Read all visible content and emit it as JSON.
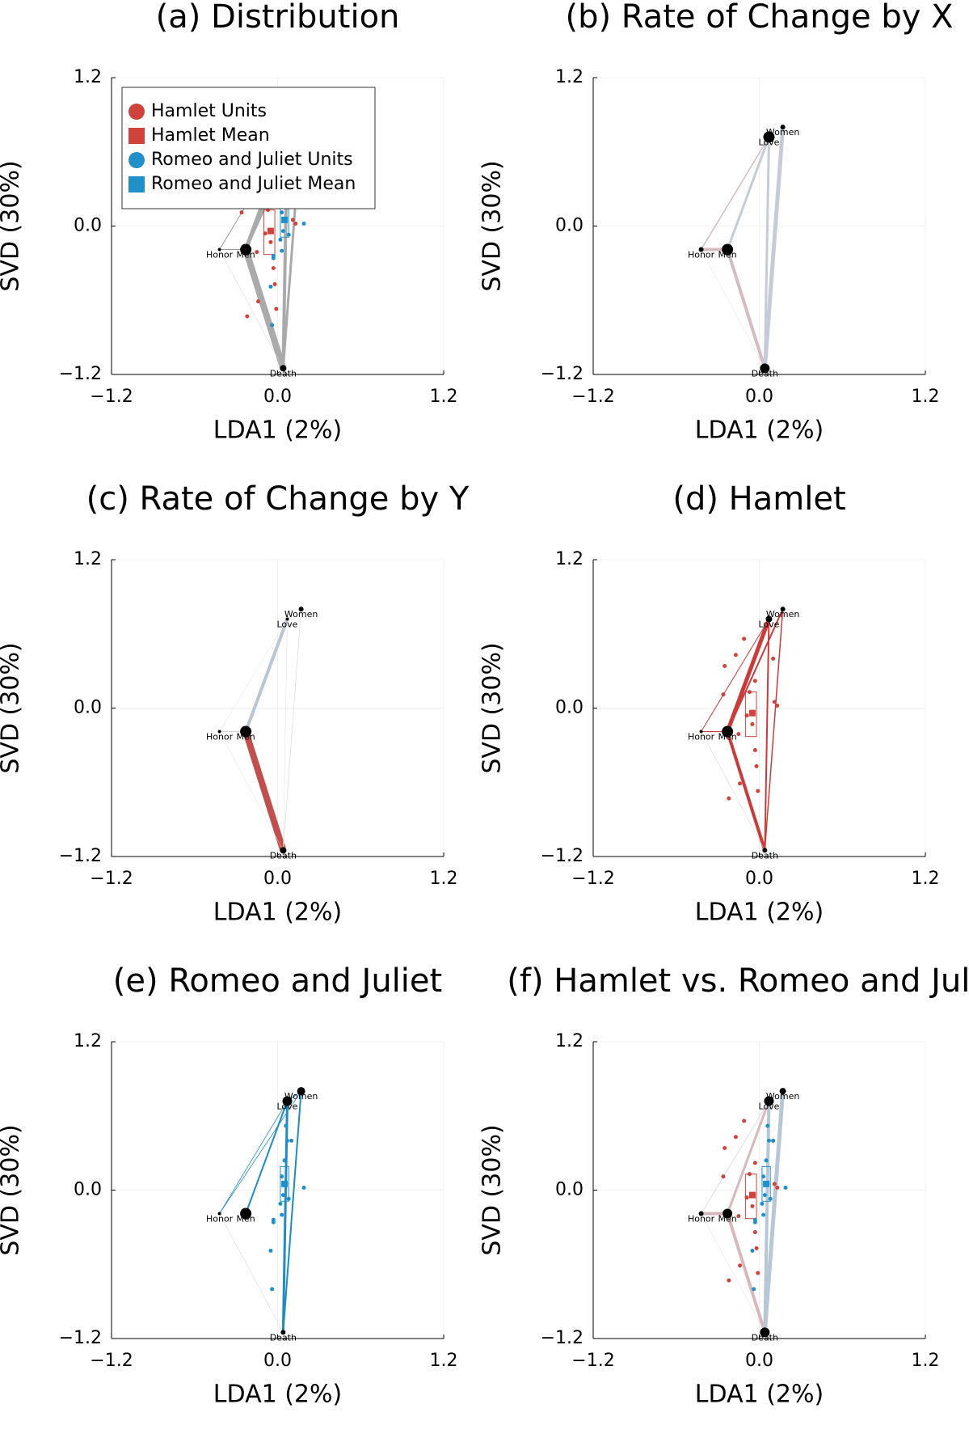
{
  "chart_data": [
    {
      "type": "network",
      "title": "(a) Distribution",
      "xlabel": "LDA1 (2%)",
      "ylabel": "SVD (30%)",
      "xlim": [
        -1.2,
        1.2
      ],
      "ylim": [
        -1.2,
        1.2
      ],
      "xticks": [
        {
          "value": -1.2,
          "label": "−1.2"
        },
        {
          "value": 0,
          "label": "0.0"
        },
        1.2
      ],
      "yticks": [
        {
          "value": -1.2,
          "label": "−1.2"
        },
        {
          "value": 0,
          "label": "0.0"
        },
        1.2
      ],
      "grid": true,
      "legend": "top-left",
      "nodes": {
        "labels": [
          "Women",
          "Love",
          "Honor",
          "Men",
          "Death"
        ],
        "x": [
          0.17,
          0.07,
          -0.42,
          -0.23,
          0.04
        ],
        "y": [
          0.8,
          0.72,
          -0.19,
          -0.19,
          -1.15
        ],
        "size": [
          3,
          3,
          2,
          7,
          4
        ]
      },
      "edges": [
        {
          "from": 3,
          "to": 4,
          "width": 8,
          "color": "#aaaaaa"
        },
        {
          "from": 3,
          "to": 1,
          "width": 5,
          "color": "#aaaaaa"
        },
        {
          "from": 3,
          "to": 0,
          "width": 3,
          "color": "#aaaaaa"
        },
        {
          "from": 4,
          "to": 1,
          "width": 4,
          "color": "#aaaaaa"
        },
        {
          "from": 4,
          "to": 0,
          "width": 3,
          "color": "#aaaaaa"
        },
        {
          "from": 2,
          "to": 3,
          "width": 1,
          "color": "#999999"
        },
        {
          "from": 2,
          "to": 4,
          "width": 0.5,
          "color": "#cccccc"
        },
        {
          "from": 2,
          "to": 1,
          "width": 1,
          "color": "#999999"
        }
      ],
      "series": [
        {
          "name": "Hamlet Units",
          "kind": "units",
          "color": "#d0433c",
          "x": [
            -0.11,
            -0.17,
            -0.25,
            -0.03,
            0.1,
            -0.26,
            -0.07,
            0.11,
            0.13,
            -0.09,
            -0.05,
            -0.03,
            -0.15,
            -0.02,
            -0.14,
            -0.22,
            -0.01
          ],
          "y": [
            0.56,
            0.43,
            0.34,
            0.22,
            0.4,
            0.11,
            0.13,
            0.05,
            0.02,
            -0.06,
            -0.13,
            -0.34,
            -0.21,
            -0.47,
            -0.61,
            -0.73,
            -0.67
          ]
        },
        {
          "name": "Hamlet Mean",
          "kind": "mean",
          "color": "#d0433c",
          "x": -0.05,
          "y": -0.04,
          "box_x": [
            -0.1,
            -0.02
          ],
          "box_y": [
            -0.23,
            0.13
          ]
        },
        {
          "name": "Romeo and Juliet Units",
          "kind": "units",
          "color": "#2290c8",
          "x": [
            0.07,
            0.1,
            0.05,
            0.03,
            0.06,
            0.04,
            0.08,
            0.19,
            -0.03,
            0.03,
            -0.05,
            -0.03,
            -0.04,
            0.02,
            0.06
          ],
          "y": [
            0.4,
            0.4,
            0.24,
            0.11,
            0.05,
            -0.04,
            -0.07,
            0.02,
            -0.24,
            -0.2,
            -0.49,
            -0.26,
            -0.8,
            -0.11,
            0.52
          ]
        },
        {
          "name": "Romeo and Juliet Mean",
          "kind": "mean",
          "color": "#2290c8",
          "x": 0.05,
          "y": 0.05,
          "box_x": [
            0.02,
            0.08
          ],
          "box_y": [
            -0.09,
            0.19
          ]
        }
      ]
    },
    {
      "type": "network",
      "title": "(b) Rate of Change by X",
      "xlabel": "LDA1 (2%)",
      "ylabel": "SVD (30%)",
      "xlim": [
        -1.2,
        1.2
      ],
      "ylim": [
        -1.2,
        1.2
      ],
      "xticks": [
        {
          "value": -1.2,
          "label": "−1.2"
        },
        {
          "value": 0,
          "label": "0.0"
        },
        1.2
      ],
      "yticks": [
        {
          "value": -1.2,
          "label": "−1.2"
        },
        {
          "value": 0,
          "label": "0.0"
        },
        1.2
      ],
      "grid": true,
      "nodes": {
        "labels": [
          "Women",
          "Love",
          "Honor",
          "Men",
          "Death"
        ],
        "x": [
          0.17,
          0.07,
          -0.42,
          -0.23,
          0.04
        ],
        "y": [
          0.8,
          0.72,
          -0.19,
          -0.19,
          -1.15
        ],
        "size": [
          3,
          7,
          3,
          7,
          6
        ]
      },
      "edges": [
        {
          "from": 2,
          "to": 3,
          "width": 4,
          "color": "#d4bcc1"
        },
        {
          "from": 3,
          "to": 4,
          "width": 4,
          "color": "#d4bcc1"
        },
        {
          "from": 3,
          "to": 1,
          "width": 3,
          "color": "#c5ccd8"
        },
        {
          "from": 4,
          "to": 1,
          "width": 3,
          "color": "#c5ccd8"
        },
        {
          "from": 4,
          "to": 0,
          "width": 5,
          "color": "#c5ccd8"
        },
        {
          "from": 2,
          "to": 1,
          "width": 1.5,
          "color": "#d4bcc1"
        },
        {
          "from": 2,
          "to": 4,
          "width": 0.5,
          "color": "#dddddd"
        }
      ]
    },
    {
      "type": "network",
      "title": "(c) Rate of Change by Y",
      "xlabel": "LDA1 (2%)",
      "ylabel": "SVD (30%)",
      "xlim": [
        -1.2,
        1.2
      ],
      "ylim": [
        -1.2,
        1.2
      ],
      "xticks": [
        {
          "value": -1.2,
          "label": "−1.2"
        },
        {
          "value": 0,
          "label": "0.0"
        },
        1.2
      ],
      "yticks": [
        {
          "value": -1.2,
          "label": "−1.2"
        },
        {
          "value": 0,
          "label": "0.0"
        },
        1.2
      ],
      "grid": true,
      "nodes": {
        "labels": [
          "Women",
          "Love",
          "Honor",
          "Men",
          "Death"
        ],
        "x": [
          0.17,
          0.07,
          -0.42,
          -0.23,
          0.04
        ],
        "y": [
          0.8,
          0.72,
          -0.19,
          -0.19,
          -1.15
        ],
        "size": [
          3,
          2,
          2,
          7,
          4
        ]
      },
      "edges": [
        {
          "from": 3,
          "to": 4,
          "width": 8,
          "color": "#c0504d"
        },
        {
          "from": 3,
          "to": 1,
          "width": 4,
          "color": "#b7c5d6"
        },
        {
          "from": 2,
          "to": 3,
          "width": 0.8,
          "color": "#cccccc"
        },
        {
          "from": 2,
          "to": 4,
          "width": 0.5,
          "color": "#dddddd"
        },
        {
          "from": 4,
          "to": 0,
          "width": 0.8,
          "color": "#dddddd"
        },
        {
          "from": 2,
          "to": 1,
          "width": 0.5,
          "color": "#dddddd"
        },
        {
          "from": 4,
          "to": 1,
          "width": 0.5,
          "color": "#dddddd"
        }
      ]
    },
    {
      "type": "network",
      "title": "(d) Hamlet",
      "xlabel": "LDA1 (2%)",
      "ylabel": "SVD (30%)",
      "xlim": [
        -1.2,
        1.2
      ],
      "ylim": [
        -1.2,
        1.2
      ],
      "xticks": [
        {
          "value": -1.2,
          "label": "−1.2"
        },
        {
          "value": 0,
          "label": "0.0"
        },
        1.2
      ],
      "yticks": [
        {
          "value": -1.2,
          "label": "−1.2"
        },
        {
          "value": 0,
          "label": "0.0"
        },
        1.2
      ],
      "grid": true,
      "nodes": {
        "labels": [
          "Women",
          "Love",
          "Honor",
          "Men",
          "Death"
        ],
        "x": [
          0.17,
          0.07,
          -0.42,
          -0.23,
          0.04
        ],
        "y": [
          0.8,
          0.72,
          -0.19,
          -0.19,
          -1.15
        ],
        "size": [
          3,
          4,
          2,
          7,
          3
        ]
      },
      "edges": [
        {
          "from": 3,
          "to": 4,
          "width": 4,
          "color": "#c83c3c"
        },
        {
          "from": 3,
          "to": 1,
          "width": 5,
          "color": "#c83c3c"
        },
        {
          "from": 3,
          "to": 0,
          "width": 2,
          "color": "#c83c3c"
        },
        {
          "from": 2,
          "to": 3,
          "width": 1,
          "color": "#c83c3c"
        },
        {
          "from": 2,
          "to": 1,
          "width": 1,
          "color": "#c83c3c"
        },
        {
          "from": 4,
          "to": 0,
          "width": 1.5,
          "color": "#c83c3c"
        },
        {
          "from": 4,
          "to": 1,
          "width": 2,
          "color": "#c83c3c"
        },
        {
          "from": 2,
          "to": 4,
          "width": 0.5,
          "color": "#cccccc"
        }
      ],
      "series": [
        {
          "kind": "units",
          "color": "#d0433c",
          "x": [
            -0.11,
            -0.17,
            -0.25,
            -0.03,
            0.1,
            -0.26,
            -0.07,
            0.11,
            0.13,
            -0.09,
            -0.05,
            -0.03,
            -0.15,
            -0.02,
            -0.14,
            -0.22,
            -0.01
          ],
          "y": [
            0.56,
            0.43,
            0.34,
            0.22,
            0.4,
            0.11,
            0.13,
            0.05,
            0.02,
            -0.06,
            -0.13,
            -0.34,
            -0.21,
            -0.47,
            -0.61,
            -0.73,
            -0.67
          ]
        },
        {
          "kind": "mean",
          "color": "#d0433c",
          "x": -0.05,
          "y": -0.04,
          "box_x": [
            -0.1,
            -0.02
          ],
          "box_y": [
            -0.23,
            0.13
          ]
        }
      ]
    },
    {
      "type": "network",
      "title": "(e) Romeo and Juliet",
      "xlabel": "LDA1 (2%)",
      "ylabel": "SVD (30%)",
      "xlim": [
        -1.2,
        1.2
      ],
      "ylim": [
        -1.2,
        1.2
      ],
      "xticks": [
        {
          "value": -1.2,
          "label": "−1.2"
        },
        {
          "value": 0,
          "label": "0.0"
        },
        1.2
      ],
      "yticks": [
        {
          "value": -1.2,
          "label": "−1.2"
        },
        {
          "value": 0,
          "label": "0.0"
        },
        1.2
      ],
      "grid": true,
      "nodes": {
        "labels": [
          "Women",
          "Love",
          "Honor",
          "Men",
          "Death"
        ],
        "x": [
          0.17,
          0.07,
          -0.42,
          -0.23,
          0.04
        ],
        "y": [
          0.8,
          0.72,
          -0.19,
          -0.19,
          -1.15
        ],
        "size": [
          5,
          6,
          2,
          7,
          3
        ]
      },
      "edges": [
        {
          "from": 4,
          "to": 1,
          "width": 3,
          "color": "#1f8bc0"
        },
        {
          "from": 4,
          "to": 0,
          "width": 2,
          "color": "#1f8bc0"
        },
        {
          "from": 3,
          "to": 1,
          "width": 2,
          "color": "#1f8bc0"
        },
        {
          "from": 2,
          "to": 1,
          "width": 0.8,
          "color": "#1f8bc0"
        },
        {
          "from": 2,
          "to": 0,
          "width": 0.8,
          "color": "#1f8bc0"
        },
        {
          "from": 1,
          "to": 0,
          "width": 1,
          "color": "#1f8bc0"
        },
        {
          "from": 2,
          "to": 4,
          "width": 0.5,
          "color": "#cccccc"
        }
      ],
      "series": [
        {
          "kind": "units",
          "color": "#2290c8",
          "x": [
            0.07,
            0.1,
            0.05,
            0.03,
            0.06,
            0.04,
            0.08,
            0.19,
            -0.03,
            0.03,
            -0.05,
            -0.03,
            -0.04,
            0.02,
            0.06
          ],
          "y": [
            0.4,
            0.4,
            0.24,
            0.11,
            0.05,
            -0.04,
            -0.07,
            0.02,
            -0.24,
            -0.2,
            -0.49,
            -0.26,
            -0.8,
            -0.11,
            0.52
          ]
        },
        {
          "kind": "mean",
          "color": "#2290c8",
          "x": 0.05,
          "y": 0.05,
          "box_x": [
            0.02,
            0.08
          ],
          "box_y": [
            -0.09,
            0.19
          ]
        }
      ]
    },
    {
      "type": "network",
      "title": "(f) Hamlet vs. Romeo and Juliet",
      "xlabel": "LDA1 (2%)",
      "ylabel": "SVD (30%)",
      "xlim": [
        -1.2,
        1.2
      ],
      "ylim": [
        -1.2,
        1.2
      ],
      "xticks": [
        {
          "value": -1.2,
          "label": "−1.2"
        },
        {
          "value": 0,
          "label": "0.0"
        },
        1.2
      ],
      "yticks": [
        {
          "value": -1.2,
          "label": "−1.2"
        },
        {
          "value": 0,
          "label": "0.0"
        },
        1.2
      ],
      "grid": true,
      "nodes": {
        "labels": [
          "Women",
          "Love",
          "Honor",
          "Men",
          "Death"
        ],
        "x": [
          0.17,
          0.07,
          -0.42,
          -0.23,
          0.04
        ],
        "y": [
          0.8,
          0.72,
          -0.19,
          -0.19,
          -1.15
        ],
        "size": [
          4,
          6,
          3,
          6,
          6
        ]
      },
      "edges": [
        {
          "from": 2,
          "to": 3,
          "width": 4,
          "color": "#d8b8bd"
        },
        {
          "from": 3,
          "to": 4,
          "width": 4,
          "color": "#d8b8bd"
        },
        {
          "from": 3,
          "to": 1,
          "width": 3,
          "color": "#d8b8bd"
        },
        {
          "from": 4,
          "to": 1,
          "width": 4,
          "color": "#b8c7d6"
        },
        {
          "from": 4,
          "to": 0,
          "width": 5,
          "color": "#b8c7d6"
        },
        {
          "from": 2,
          "to": 1,
          "width": 1,
          "color": "#dddddd"
        },
        {
          "from": 2,
          "to": 4,
          "width": 0.5,
          "color": "#dddddd"
        }
      ],
      "series": [
        {
          "kind": "units",
          "color": "#d0433c",
          "x": [
            -0.11,
            -0.17,
            -0.25,
            -0.03,
            0.1,
            -0.26,
            -0.07,
            0.11,
            0.13,
            -0.09,
            -0.05,
            -0.03,
            -0.15,
            -0.02,
            -0.14,
            -0.22,
            -0.01
          ],
          "y": [
            0.56,
            0.43,
            0.34,
            0.22,
            0.4,
            0.11,
            0.13,
            0.05,
            0.02,
            -0.06,
            -0.13,
            -0.34,
            -0.21,
            -0.47,
            -0.61,
            -0.73,
            -0.67
          ]
        },
        {
          "kind": "mean",
          "color": "#d0433c",
          "x": -0.05,
          "y": -0.04,
          "box_x": [
            -0.1,
            -0.02
          ],
          "box_y": [
            -0.23,
            0.13
          ]
        },
        {
          "kind": "units",
          "color": "#2290c8",
          "x": [
            0.07,
            0.1,
            0.05,
            0.03,
            0.06,
            0.04,
            0.08,
            0.19,
            -0.03,
            0.03,
            -0.05,
            -0.03,
            -0.04,
            0.02,
            0.06
          ],
          "y": [
            0.4,
            0.4,
            0.24,
            0.11,
            0.05,
            -0.04,
            -0.07,
            0.02,
            -0.24,
            -0.2,
            -0.49,
            -0.26,
            -0.8,
            -0.11,
            0.52
          ]
        },
        {
          "kind": "mean",
          "color": "#2290c8",
          "x": 0.05,
          "y": 0.05,
          "box_x": [
            0.02,
            0.08
          ],
          "box_y": [
            -0.09,
            0.19
          ]
        }
      ]
    }
  ]
}
